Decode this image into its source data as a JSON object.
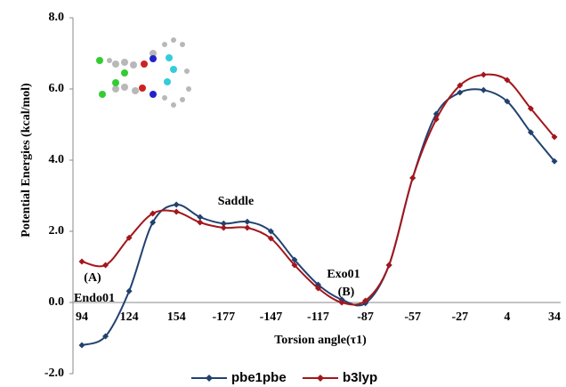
{
  "chart_data": {
    "type": "line",
    "xlabel": "Torsion angle(τ1)",
    "ylabel": "Potential Energies (kcal/mol)",
    "categories": [
      "94",
      null,
      "124",
      null,
      "154",
      null,
      "-177",
      null,
      "-147",
      null,
      "-117",
      null,
      "-87",
      null,
      "-57",
      null,
      "-27",
      null,
      "4",
      null,
      "34"
    ],
    "series": [
      {
        "name": "pbe1pbe",
        "color": "#22416f",
        "values": [
          -1.2,
          -0.95,
          0.32,
          2.25,
          2.75,
          2.4,
          2.22,
          2.27,
          2.0,
          1.2,
          0.5,
          0.08,
          -0.02,
          1.05,
          3.5,
          5.3,
          5.9,
          5.97,
          5.65,
          4.78,
          3.97
        ]
      },
      {
        "name": "b3lyp",
        "color": "#a3161c",
        "values": [
          1.15,
          1.05,
          1.82,
          2.5,
          2.55,
          2.25,
          2.1,
          2.1,
          1.8,
          1.05,
          0.4,
          0.0,
          0.05,
          1.05,
          3.5,
          5.15,
          6.1,
          6.4,
          6.25,
          5.45,
          4.65
        ]
      }
    ],
    "ylim": [
      -2,
      8
    ],
    "yticks": [
      {
        "value": -2,
        "label": "-2.0"
      },
      {
        "value": 0,
        "label": "0.0"
      },
      {
        "value": 2,
        "label": "2.0"
      },
      {
        "value": 4,
        "label": "4.0"
      },
      {
        "value": 6,
        "label": "6.0"
      },
      {
        "value": 8,
        "label": "8.0"
      }
    ],
    "annotations": [
      "Saddle",
      "(A)",
      "Endo01",
      "Exo01",
      "(B)"
    ],
    "legend": "bottom"
  }
}
